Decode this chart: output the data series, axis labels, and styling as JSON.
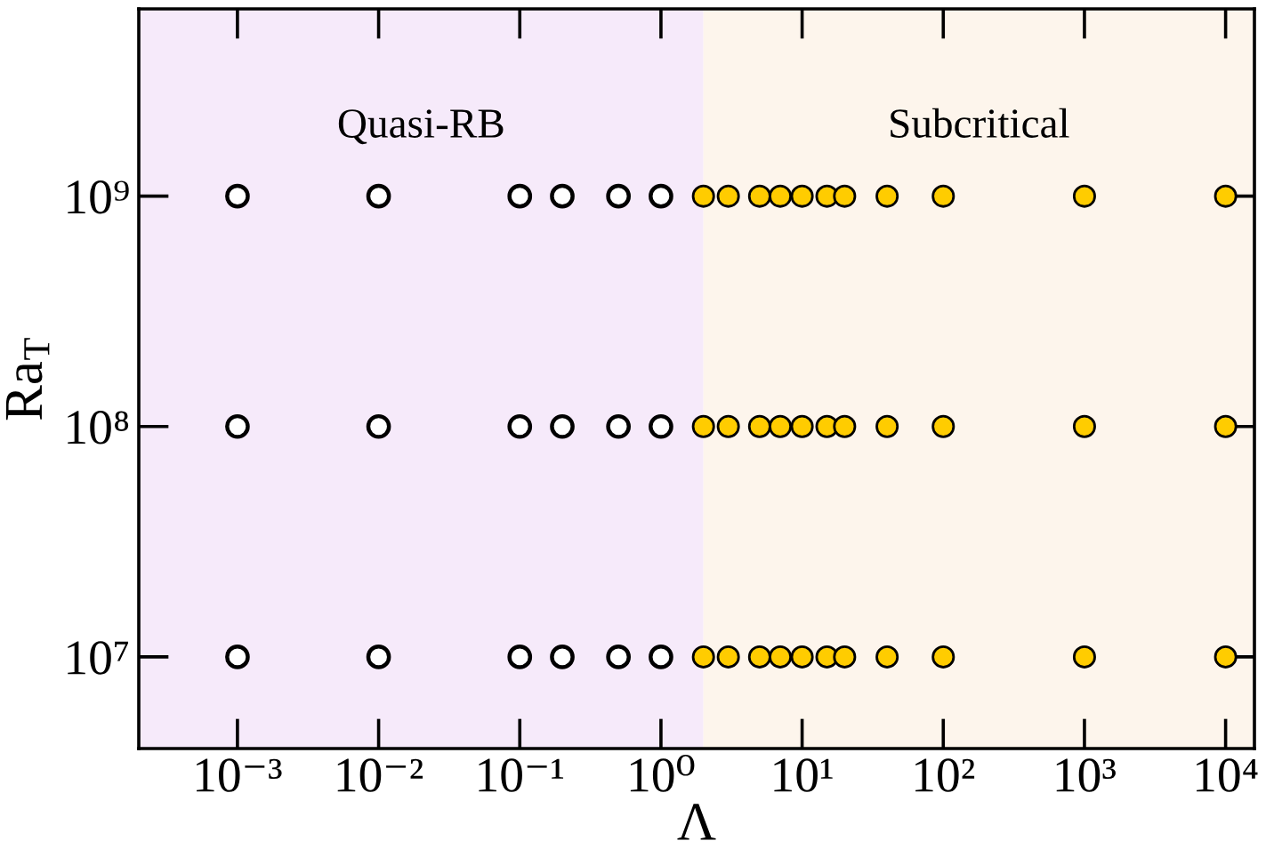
{
  "chart_data": {
    "type": "scatter",
    "xlabel": "Λ",
    "ylabel": "Ra$_{T}$",
    "log": "xy",
    "marker": "circle",
    "grid": false,
    "legend": false,
    "xlim": [
      0.0002,
      16000
    ],
    "ylim": [
      4000000,
      6500000000
    ],
    "xticks": [
      {
        "value": 0.001,
        "label": "10⁻³"
      },
      {
        "value": 0.01,
        "label": "10⁻²"
      },
      {
        "value": 0.1,
        "label": "10⁻¹"
      },
      {
        "value": 1,
        "label": "10⁰"
      },
      {
        "value": 10,
        "label": "10¹"
      },
      {
        "value": 100,
        "label": "10²"
      },
      {
        "value": 1000,
        "label": "10³"
      },
      {
        "value": 10000,
        "label": "10⁴"
      }
    ],
    "yticks": [
      {
        "value": 10000000,
        "label": "10⁷"
      },
      {
        "value": 100000000,
        "label": "10⁸"
      },
      {
        "value": 1000000000,
        "label": "10⁹"
      }
    ],
    "bands": [
      {
        "axis": "x",
        "from": 0.0002,
        "to": 2,
        "label": "Quasi-RB",
        "color": "#f6eafa"
      },
      {
        "axis": "x",
        "from": 2,
        "to": 16000,
        "label": "Subcritical",
        "color": "#fdf5ec"
      }
    ],
    "series": [
      {
        "color": "#ffffff",
        "x": [
          0.001,
          0.01,
          0.1,
          0.2,
          0.5,
          1,
          0.001,
          0.01,
          0.1,
          0.2,
          0.5,
          1,
          0.001,
          0.01,
          0.1,
          0.2,
          0.5,
          1
        ],
        "values": [
          1000000000,
          1000000000,
          1000000000,
          1000000000,
          1000000000,
          1000000000,
          100000000,
          100000000,
          100000000,
          100000000,
          100000000,
          100000000,
          10000000,
          10000000,
          10000000,
          10000000,
          10000000,
          10000000
        ]
      },
      {
        "color": "#ffcc00",
        "x": [
          2,
          3,
          5,
          7,
          10,
          15,
          20,
          40,
          100,
          1000,
          10000,
          2,
          3,
          5,
          7,
          10,
          15,
          20,
          40,
          100,
          1000,
          10000,
          2,
          3,
          5,
          7,
          10,
          15,
          20,
          40,
          100,
          1000,
          10000
        ],
        "values": [
          1000000000,
          1000000000,
          1000000000,
          1000000000,
          1000000000,
          1000000000,
          1000000000,
          1000000000,
          1000000000,
          1000000000,
          1000000000,
          100000000,
          100000000,
          100000000,
          100000000,
          100000000,
          100000000,
          100000000,
          100000000,
          100000000,
          100000000,
          100000000,
          10000000,
          10000000,
          10000000,
          10000000,
          10000000,
          10000000,
          10000000,
          10000000,
          10000000,
          10000000,
          10000000
        ]
      }
    ]
  }
}
